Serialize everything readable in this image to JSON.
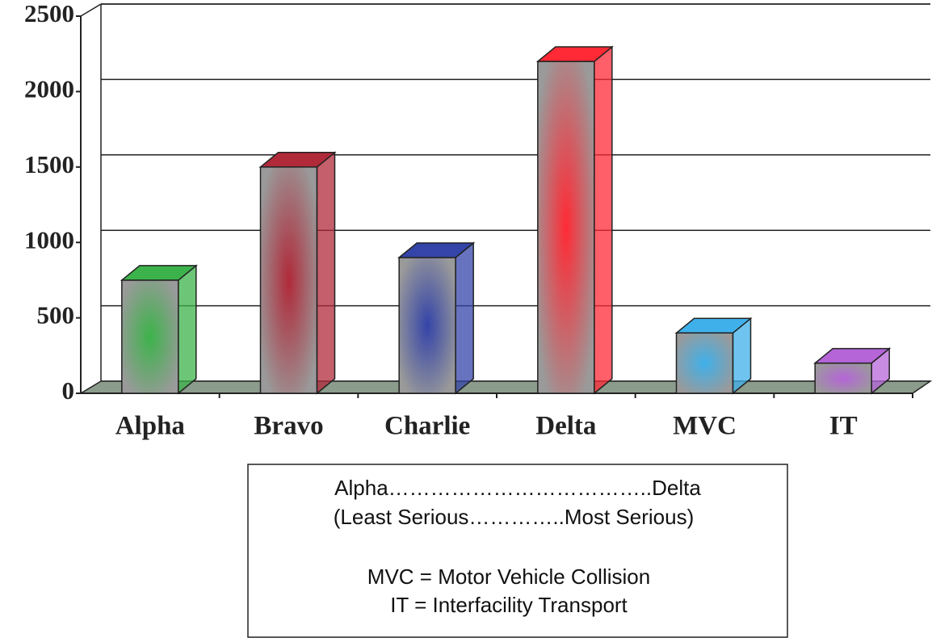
{
  "chart_data": {
    "type": "bar3d",
    "categories": [
      "Alpha",
      "Bravo",
      "Charlie",
      "Delta",
      "MVC",
      "IT"
    ],
    "values": [
      750,
      1500,
      900,
      2200,
      400,
      200
    ],
    "colors": [
      "#3cb34a",
      "#b02a3a",
      "#3444a8",
      "#ff2a35",
      "#3fb0ea",
      "#b565d8"
    ],
    "ylim": [
      0,
      2500
    ],
    "yticks": [
      0,
      500,
      1000,
      1500,
      2000,
      2500
    ],
    "grid": true,
    "annotations": [
      "Alpha………………………………..Delta",
      "(Least Serious…………..Most Serious)",
      "MVC = Motor Vehicle Collision",
      "IT = Interfacility Transport"
    ]
  }
}
